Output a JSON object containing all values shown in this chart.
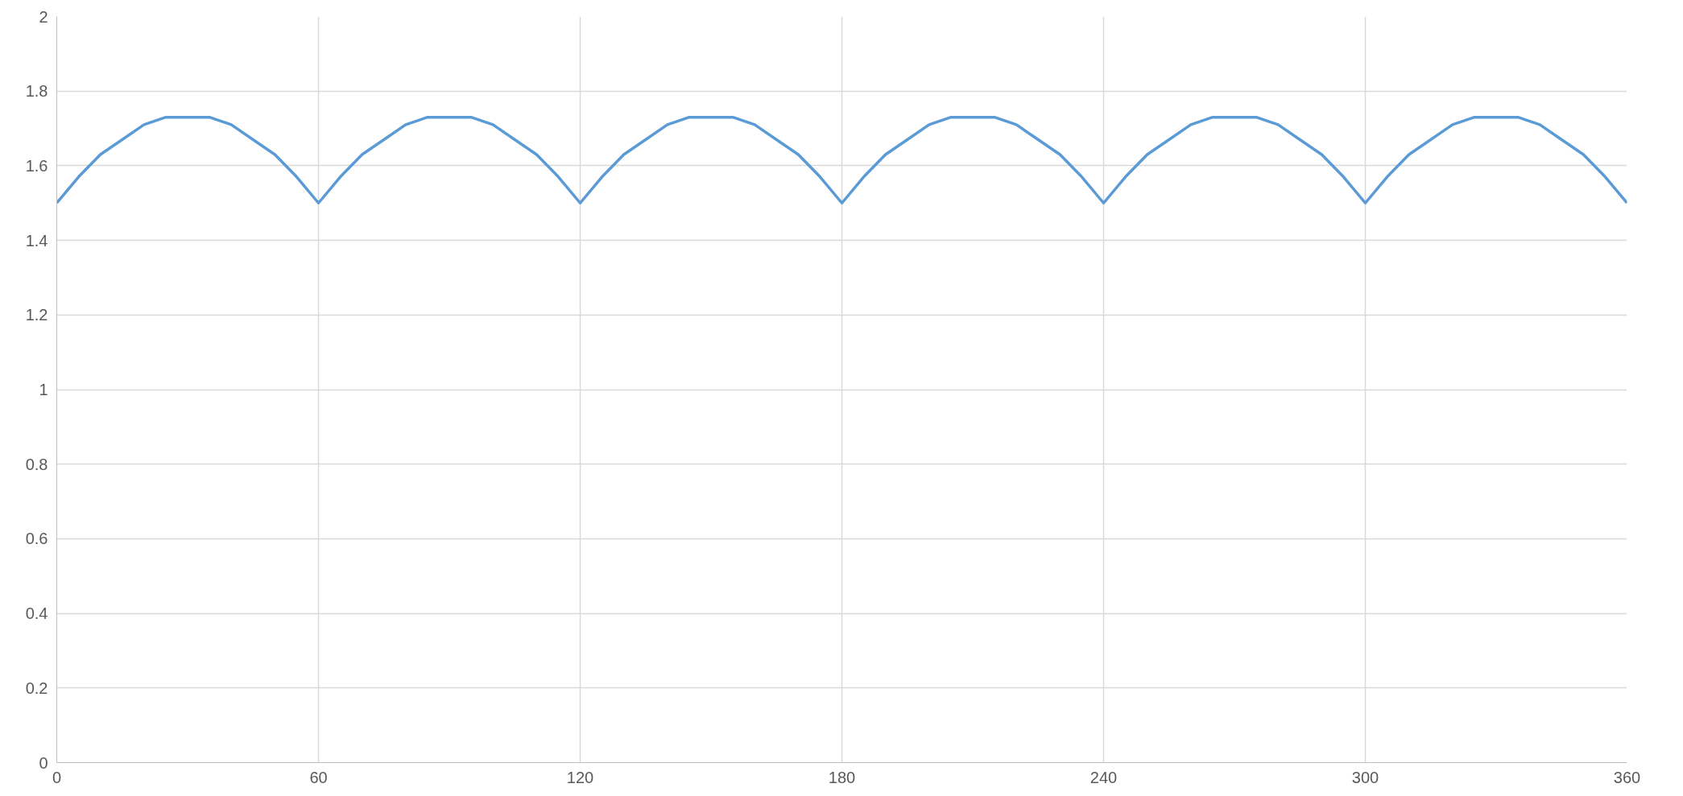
{
  "chart_data": {
    "type": "line",
    "x": [
      0,
      5,
      10,
      15,
      20,
      25,
      30,
      35,
      40,
      45,
      50,
      55,
      60,
      65,
      70,
      75,
      80,
      85,
      90,
      95,
      100,
      105,
      110,
      115,
      120,
      125,
      130,
      135,
      140,
      145,
      150,
      155,
      160,
      165,
      170,
      175,
      180,
      185,
      190,
      195,
      200,
      205,
      210,
      215,
      220,
      225,
      230,
      235,
      240,
      245,
      250,
      255,
      260,
      265,
      270,
      275,
      280,
      285,
      290,
      295,
      300,
      305,
      310,
      315,
      320,
      325,
      330,
      335,
      340,
      345,
      350,
      355,
      360
    ],
    "series": [
      {
        "color": "#5b9bd5",
        "values": [
          1.5,
          1.57,
          1.63,
          1.67,
          1.71,
          1.73,
          1.73,
          1.73,
          1.71,
          1.67,
          1.63,
          1.57,
          1.5,
          1.57,
          1.63,
          1.67,
          1.71,
          1.73,
          1.73,
          1.73,
          1.71,
          1.67,
          1.63,
          1.57,
          1.5,
          1.57,
          1.63,
          1.67,
          1.71,
          1.73,
          1.73,
          1.73,
          1.71,
          1.67,
          1.63,
          1.57,
          1.5,
          1.57,
          1.63,
          1.67,
          1.71,
          1.73,
          1.73,
          1.73,
          1.71,
          1.67,
          1.63,
          1.57,
          1.5,
          1.57,
          1.63,
          1.67,
          1.71,
          1.73,
          1.73,
          1.73,
          1.71,
          1.67,
          1.63,
          1.57,
          1.5,
          1.57,
          1.63,
          1.67,
          1.71,
          1.73,
          1.73,
          1.73,
          1.71,
          1.67,
          1.63,
          1.57,
          1.5
        ]
      }
    ],
    "xlim": [
      0,
      360
    ],
    "xticks": [
      0,
      60,
      120,
      180,
      240,
      300,
      360
    ],
    "ylim": [
      0,
      2
    ],
    "yticks": [
      0,
      0.2,
      0.4,
      0.6,
      0.8,
      1,
      1.2,
      1.4,
      1.6,
      1.8,
      2
    ],
    "grid": true
  }
}
